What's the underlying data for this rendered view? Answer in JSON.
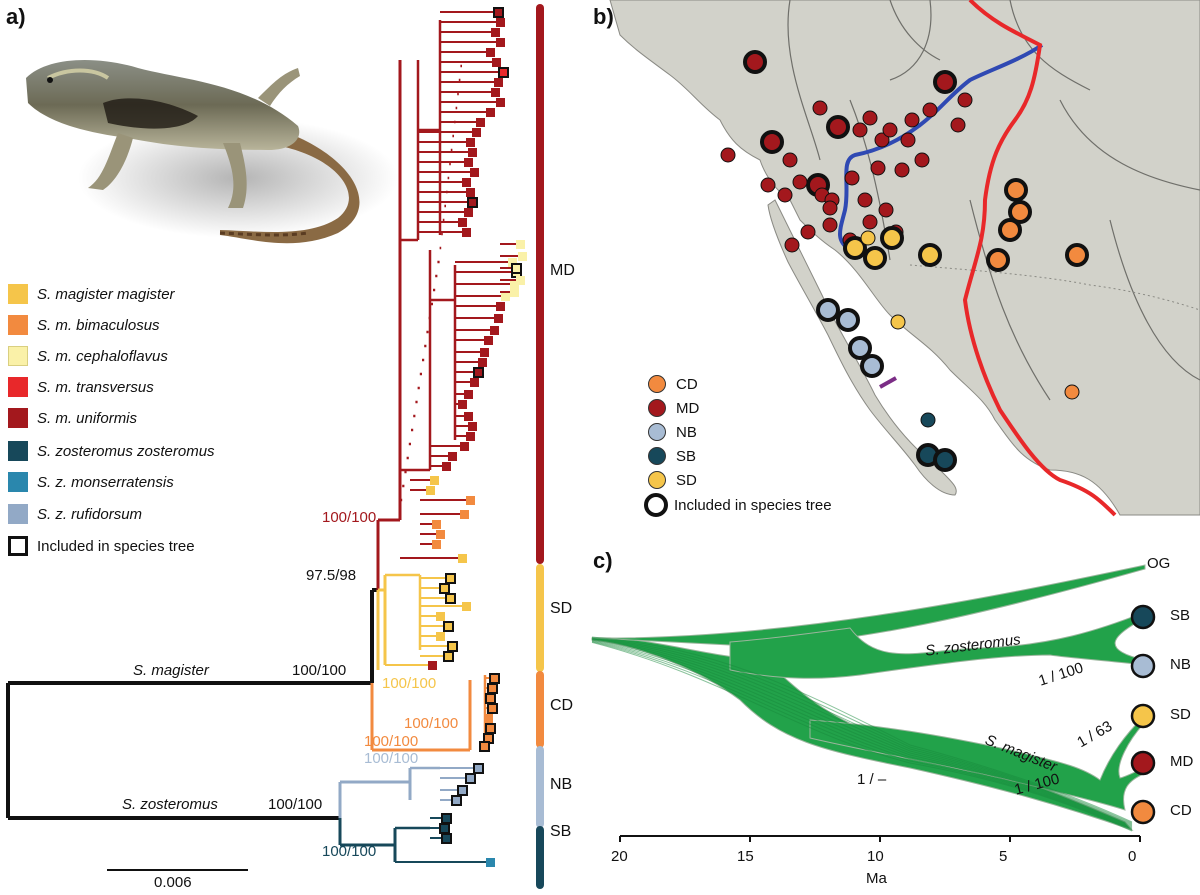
{
  "panels": {
    "a": "a)",
    "b": "b)",
    "c": "c)"
  },
  "colors": {
    "magister": "#f5c54a",
    "bimaculosus": "#f28a3f",
    "cephaloflavus": "#faf1a8",
    "transversus": "#e8282a",
    "uniformis": "#a3181d",
    "zosteromus": "#17485a",
    "monserratensis": "#2a87ad",
    "rufidorsum": "#92a9c6",
    "SD": "#f5c54a",
    "CD": "#f28a3f",
    "NB": "#a8bcd4",
    "SB": "#17485a",
    "MD": "#a3181d",
    "stem": "#111111",
    "tree_green": "#22a24a",
    "map_land": "#d2d2ca",
    "river": "#2f49b3",
    "boundary_red": "#e8282a"
  },
  "legend_a": [
    {
      "label": "S. magister magister",
      "color": "#f5c54a",
      "italic": true
    },
    {
      "label": "S. m. bimaculosus",
      "color": "#f28a3f",
      "italic": true
    },
    {
      "label": "S. m. cephaloflavus",
      "color": "#faf1a8",
      "italic": true
    },
    {
      "label": "S. m. transversus",
      "color": "#e8282a",
      "italic": true
    },
    {
      "label": "S. m. uniformis",
      "color": "#a3181d",
      "italic": true
    },
    {
      "label": "S. zosteromus zosteromus",
      "color": "#17485a",
      "italic": true
    },
    {
      "label": "S. z. monserratensis",
      "color": "#2a87ad",
      "italic": true
    },
    {
      "label": "S. z. rufidorsum",
      "color": "#92a9c6",
      "italic": true
    },
    {
      "label": "Included in species tree",
      "color": "#ffffff",
      "italic": false,
      "open": true
    }
  ],
  "tree_a": {
    "clade_bars": [
      "MD",
      "SD",
      "CD",
      "NB",
      "SB"
    ],
    "support": {
      "md": "100/100",
      "magister_node": "97.5/98",
      "root_magister": "100/100",
      "sd": "100/100",
      "cd": "100/100",
      "cd_base": "100/100",
      "nb": "100/100",
      "root_zosteromus": "100/100",
      "sb": "100/100"
    },
    "stem_labels": {
      "magister": "S. magister",
      "zosteromus": "S. zosteromus"
    },
    "scale_bar": "0.006"
  },
  "map_b": {
    "legend": [
      {
        "code": "CD",
        "color": "#f28a3f"
      },
      {
        "code": "MD",
        "color": "#a3181d"
      },
      {
        "code": "NB",
        "color": "#a8bcd4"
      },
      {
        "code": "SB",
        "color": "#17485a"
      },
      {
        "code": "SD",
        "color": "#f5c54a"
      }
    ],
    "included_label": "Included in species tree"
  },
  "species_tree_c": {
    "tips": [
      {
        "code": "OG",
        "color": null
      },
      {
        "code": "SB",
        "color": "#17485a"
      },
      {
        "code": "NB",
        "color": "#a8bcd4"
      },
      {
        "code": "SD",
        "color": "#f5c54a"
      },
      {
        "code": "MD",
        "color": "#a3181d"
      },
      {
        "code": "CD",
        "color": "#f28a3f"
      }
    ],
    "clade_labels": {
      "zosteromus": "S. zosteromus",
      "magister": "S. magister"
    },
    "support": {
      "zost": "1 / 100",
      "mag": "1 / 63",
      "md_cd": "1 / 100",
      "root": "1 / –"
    },
    "axis": {
      "ticks": [
        "20",
        "15",
        "10",
        "5",
        "0"
      ],
      "label": "Ma"
    }
  }
}
